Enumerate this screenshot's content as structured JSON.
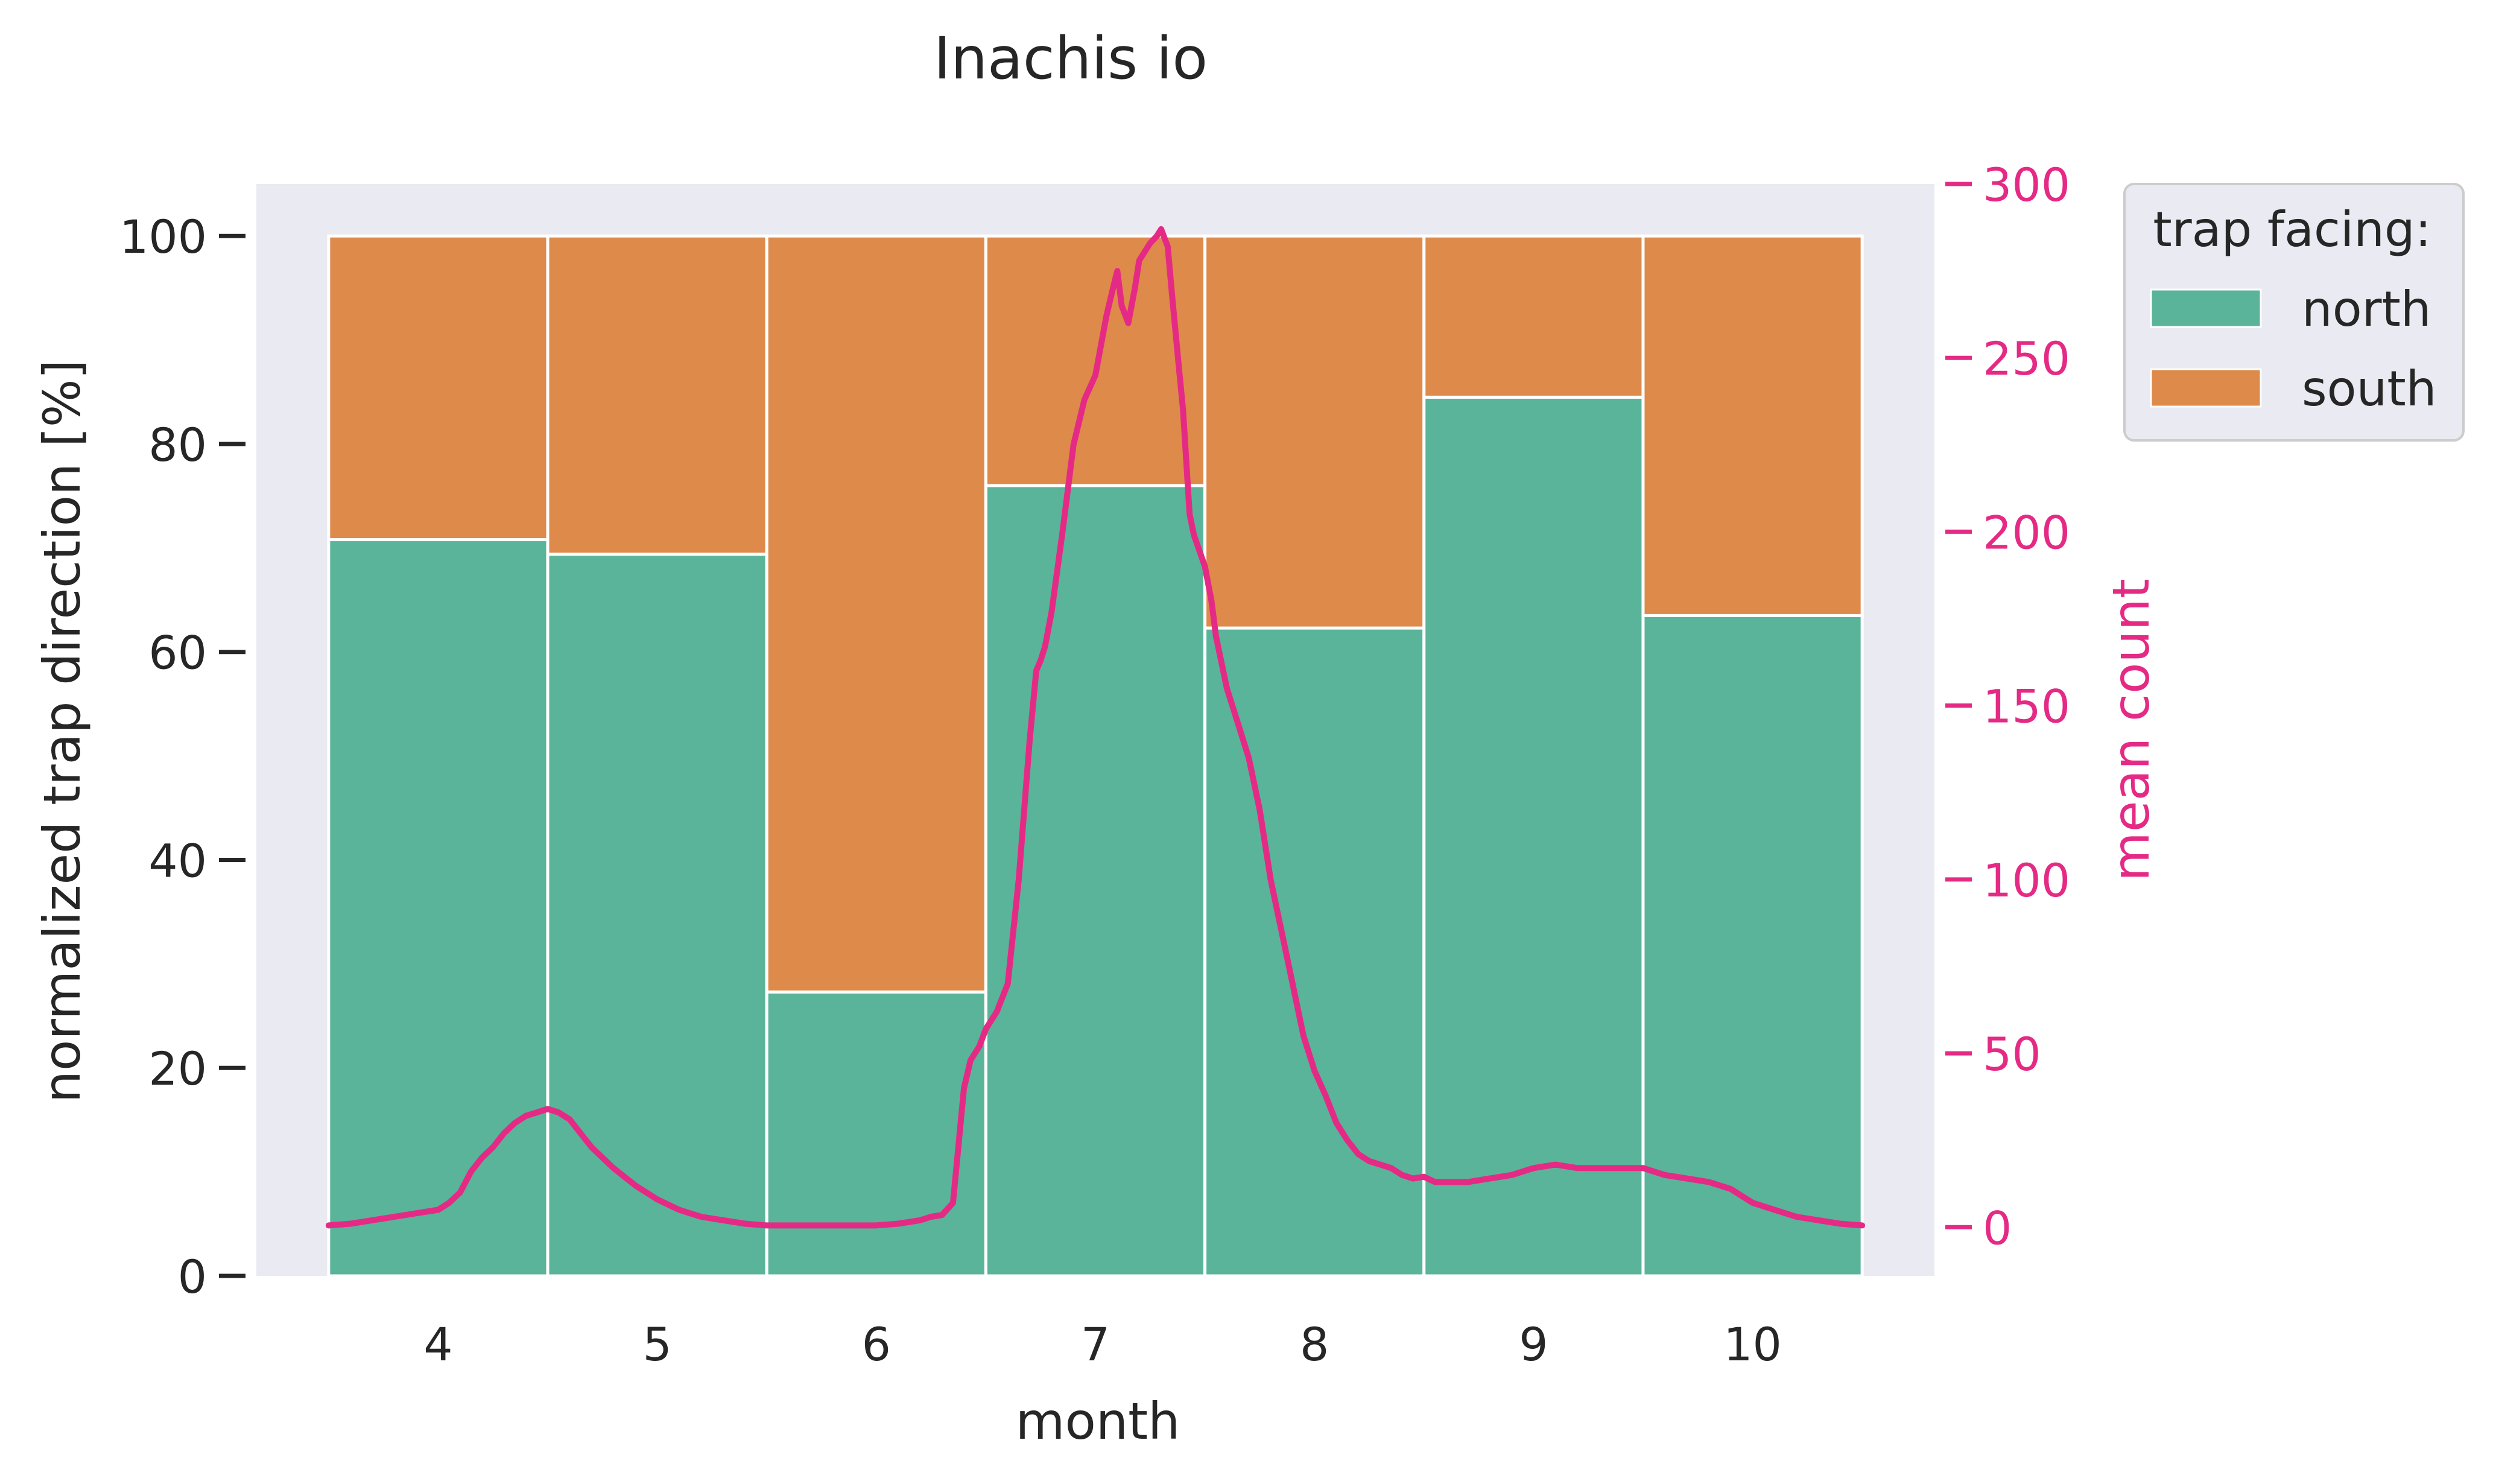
{
  "chart_data": {
    "type": "bar",
    "stacked": true,
    "title": "Inachis io",
    "xlabel": "month",
    "ylabel": "normalized trap direction [%]",
    "ylim": [
      0,
      105
    ],
    "yticks": [
      0,
      20,
      40,
      60,
      80,
      100
    ],
    "categories": [
      "4",
      "5",
      "6",
      "7",
      "8",
      "9",
      "10"
    ],
    "series": [
      {
        "name": "north",
        "color": "#5ab49a",
        "values": [
          70.8,
          69.4,
          27.3,
          76.0,
          62.3,
          84.5,
          63.5
        ]
      },
      {
        "name": "south",
        "color": "#dd8a4b",
        "values": [
          29.2,
          30.6,
          72.7,
          24.0,
          37.7,
          15.5,
          36.5
        ]
      }
    ],
    "legend": {
      "title": "trap facing:",
      "placement": "outside-top-right"
    },
    "secondary_axis": {
      "label": "mean count",
      "color": "#e52a85",
      "ylim": [
        -14,
        300
      ],
      "yticks": [
        0,
        50,
        100,
        150,
        200,
        250,
        300
      ],
      "line": {
        "x": [
          3.5,
          3.6,
          3.7,
          3.8,
          3.9,
          4.0,
          4.05,
          4.1,
          4.15,
          4.2,
          4.25,
          4.3,
          4.35,
          4.4,
          4.45,
          4.5,
          4.55,
          4.6,
          4.65,
          4.7,
          4.75,
          4.8,
          4.9,
          5.0,
          5.1,
          5.2,
          5.3,
          5.4,
          5.5,
          5.6,
          5.7,
          5.8,
          5.9,
          6.0,
          6.1,
          6.2,
          6.25,
          6.3,
          6.35,
          6.4,
          6.43,
          6.45,
          6.47,
          6.5,
          6.55,
          6.6,
          6.65,
          6.7,
          6.73,
          6.75,
          6.77,
          6.8,
          6.85,
          6.9,
          6.95,
          7.0,
          7.05,
          7.08,
          7.1,
          7.12,
          7.15,
          7.18,
          7.2,
          7.25,
          7.28,
          7.3,
          7.33,
          7.35,
          7.38,
          7.4,
          7.43,
          7.45,
          7.5,
          7.53,
          7.55,
          7.6,
          7.65,
          7.7,
          7.75,
          7.8,
          7.85,
          7.9,
          7.95,
          8.0,
          8.05,
          8.1,
          8.15,
          8.2,
          8.25,
          8.3,
          8.35,
          8.4,
          8.45,
          8.5,
          8.55,
          8.6,
          8.65,
          8.7,
          8.8,
          8.9,
          9.0,
          9.1,
          9.2,
          9.3,
          9.4,
          9.5,
          9.55,
          9.6,
          9.7,
          9.8,
          9.9,
          10.0,
          10.1,
          10.2,
          10.3,
          10.4,
          10.5
        ],
        "y": [
          0.5,
          1,
          2,
          3,
          4,
          5,
          7,
          10,
          16,
          20,
          23,
          27,
          30,
          32,
          33,
          34,
          33,
          31,
          27,
          23,
          20,
          17,
          12,
          8,
          5,
          3,
          2,
          1,
          0.5,
          0.5,
          0.5,
          0.5,
          0.5,
          0.5,
          1,
          2,
          3,
          3.5,
          7,
          40,
          48,
          50,
          52,
          57,
          62,
          70,
          100,
          140,
          160,
          163,
          167,
          177,
          200,
          225,
          238,
          245,
          262,
          270,
          275,
          265,
          260,
          270,
          278,
          283,
          285,
          287,
          282,
          268,
          248,
          235,
          205,
          199,
          190,
          180,
          170,
          155,
          145,
          135,
          120,
          100,
          85,
          70,
          55,
          45,
          38,
          30,
          25,
          21,
          19,
          18,
          17,
          15,
          14,
          14.5,
          13,
          13,
          13,
          13,
          14,
          15,
          17,
          18,
          17,
          17,
          17,
          17,
          16,
          15,
          14,
          13,
          11,
          7,
          5,
          3,
          2,
          1,
          0.5
        ]
      }
    },
    "grid": false,
    "background": "#eaeaf2"
  }
}
